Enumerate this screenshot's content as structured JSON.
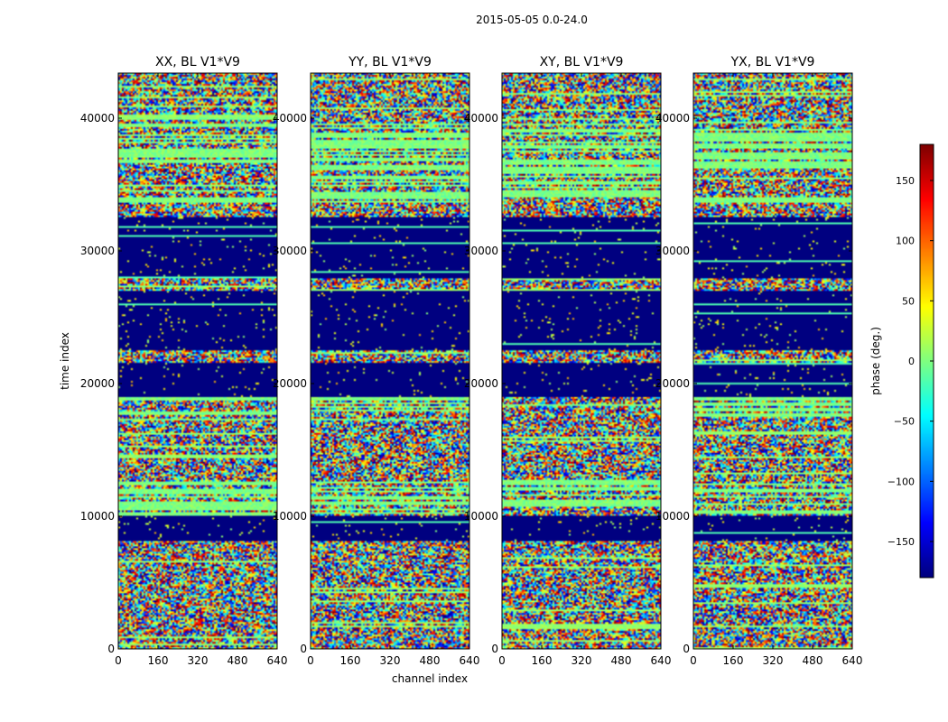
{
  "figure": {
    "suptitle": "2015-05-05 0.0-24.0"
  },
  "chart_data": {
    "type": "heatmap",
    "xlabel": "channel index",
    "ylabel": "time index",
    "xlim": [
      0,
      640
    ],
    "ylim": [
      0,
      43400
    ],
    "x_ticks": [
      0,
      160,
      320,
      480,
      640
    ],
    "y_ticks": [
      0,
      10000,
      20000,
      30000,
      40000
    ],
    "colormap": "jet",
    "panels": [
      {
        "title": "XX, BL V1*V9",
        "seed": 11
      },
      {
        "title": "YY, BL V1*V9",
        "seed": 23
      },
      {
        "title": "XY, BL V1*V9",
        "seed": 37
      },
      {
        "title": "YX, BL V1*V9",
        "seed": 53
      }
    ],
    "flagged_time_ranges": [
      [
        8200,
        10000
      ],
      [
        19000,
        21500
      ],
      [
        22500,
        27000
      ],
      [
        28000,
        32500
      ]
    ],
    "striped_time_ranges": [
      [
        10000,
        12800
      ],
      [
        17200,
        19000
      ],
      [
        33500,
        40000
      ]
    ],
    "colorbar": {
      "label": "phase (deg.)",
      "range": [
        -180,
        180
      ],
      "ticks": [
        -150,
        -100,
        -50,
        0,
        50,
        100,
        150
      ]
    }
  }
}
